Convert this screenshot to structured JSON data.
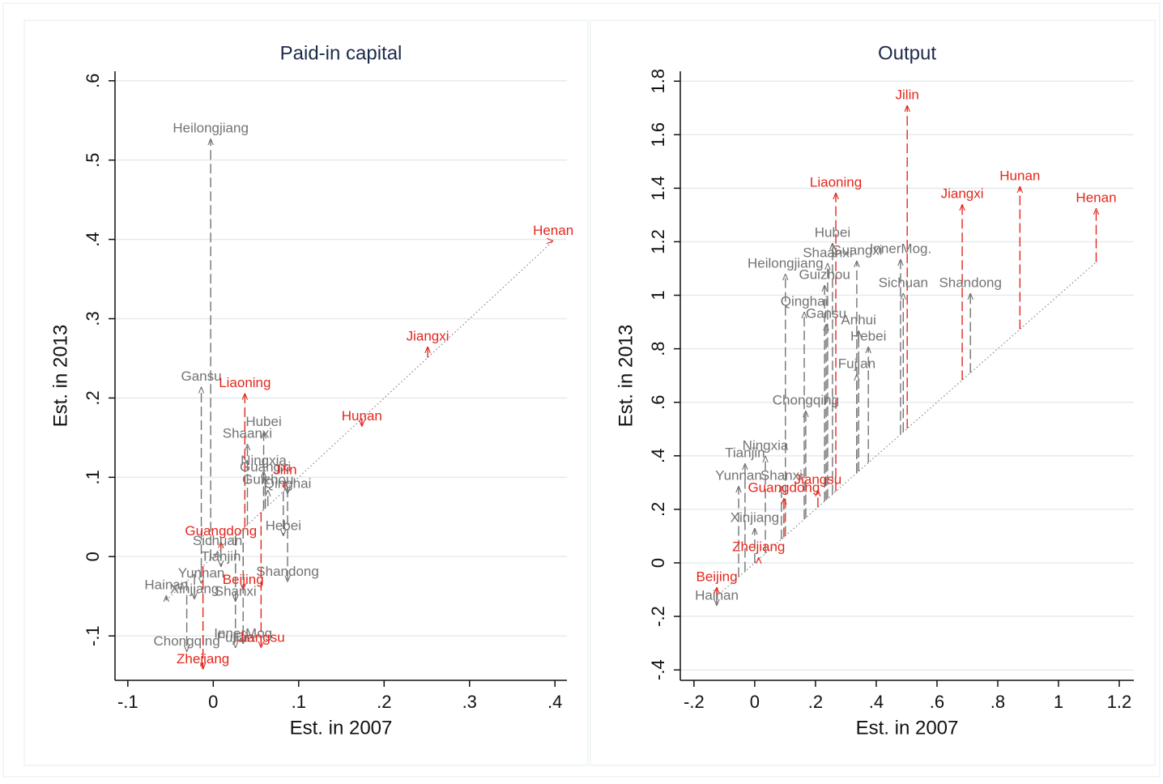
{
  "chart_data": [
    {
      "type": "arrow",
      "title": "Paid-in capital",
      "x_label": "Est. in 2007",
      "y_label": "Est. in 2013",
      "xlim": [
        -0.115,
        0.414
      ],
      "ylim": [
        -0.156,
        0.612
      ],
      "xticks": [
        {
          "value": -0.1,
          "label": "-.1"
        },
        0,
        {
          "value": 0.1,
          "label": ".1"
        },
        {
          "value": 0.2,
          "label": ".2"
        },
        {
          "value": 0.3,
          "label": ".3"
        },
        {
          "value": 0.4,
          "label": ".4"
        }
      ],
      "yticks": [
        {
          "value": -0.1,
          "label": "-.1"
        },
        0,
        {
          "value": 0.1,
          "label": ".1"
        },
        {
          "value": 0.2,
          "label": ".2"
        },
        {
          "value": 0.3,
          "label": ".3"
        },
        {
          "value": 0.4,
          "label": ".4"
        },
        {
          "value": 0.5,
          "label": ".5"
        },
        {
          "value": 0.6,
          "label": ".6"
        }
      ],
      "grid": true,
      "labels": [
        "Heilongjiang",
        "Henan",
        "Jiangxi",
        "Hunan",
        "Gansu",
        "Liaoning",
        "Hubei",
        "Shaanxi",
        "Ningxia",
        "Guangxi",
        "Jilin",
        "Guizhou",
        "Qinghai",
        "Hebei",
        "Guangdong",
        "Sichuan",
        "Tianjin",
        "Shandong",
        "Hainan",
        "Yunnan",
        "Xinjiang",
        "Shanxi",
        "Beijing",
        "InnerMog",
        "Fujian",
        "Jiangsu",
        "Chongqing",
        "Zhejiang"
      ],
      "x": [
        -0.003,
        0.398,
        0.251,
        0.174,
        -0.014,
        0.037,
        0.059,
        0.04,
        0.059,
        0.061,
        0.084,
        0.064,
        0.087,
        0.082,
        0.009,
        0.005,
        0.009,
        0.087,
        -0.055,
        -0.014,
        -0.022,
        0.026,
        0.035,
        0.035,
        0.026,
        0.056,
        -0.031,
        -0.012
      ],
      "values": [
        0.527,
        0.398,
        0.265,
        0.164,
        0.214,
        0.206,
        0.157,
        0.142,
        0.108,
        0.1,
        0.096,
        0.084,
        0.079,
        0.026,
        0.019,
        0.007,
        -0.013,
        -0.032,
        -0.049,
        -0.034,
        -0.054,
        -0.057,
        -0.042,
        -0.11,
        -0.115,
        -0.115,
        -0.12,
        -0.142
      ],
      "colors": [
        "#737373",
        "#e5261d",
        "#e5261d",
        "#e5261d",
        "#737373",
        "#e5261d",
        "#737373",
        "#737373",
        "#737373",
        "#737373",
        "#e5261d",
        "#737373",
        "#737373",
        "#737373",
        "#e5261d",
        "#737373",
        "#737373",
        "#737373",
        "#737373",
        "#737373",
        "#737373",
        "#737373",
        "#e5261d",
        "#737373",
        "#737373",
        "#e5261d",
        "#737373",
        "#e5261d"
      ]
    },
    {
      "type": "arrow",
      "title": "Output",
      "x_label": "Est. in 2007",
      "y_label": "Est. in 2013",
      "xlim": [
        -0.245,
        1.248
      ],
      "ylim": [
        -0.439,
        1.837
      ],
      "xticks": [
        {
          "value": -0.2,
          "label": "-.2"
        },
        0,
        {
          "value": 0.2,
          "label": ".2"
        },
        {
          "value": 0.4,
          "label": ".4"
        },
        {
          "value": 0.6,
          "label": ".6"
        },
        {
          "value": 0.8,
          "label": ".8"
        },
        1,
        1.2
      ],
      "yticks": [
        {
          "value": -0.4,
          "label": "-.4"
        },
        {
          "value": -0.2,
          "label": "-.2"
        },
        0,
        {
          "value": 0.2,
          "label": ".2"
        },
        {
          "value": 0.4,
          "label": ".4"
        },
        {
          "value": 0.6,
          "label": ".6"
        },
        {
          "value": 0.8,
          "label": ".8"
        },
        1,
        1.2,
        1.4,
        1.6,
        1.8
      ],
      "grid": true,
      "labels": [
        "Jilin",
        "Liaoning",
        "Jiangxi",
        "Hunan",
        "Henan",
        "Hubei",
        "Guangxi",
        "InnerMog.",
        "Shaanxi",
        "Heilongjiang",
        "Guizhou",
        "Sichuan",
        "Shandong",
        "Qinghai",
        "Gansu",
        "Anhui",
        "Hebei",
        "Fujian",
        "Chongqing",
        "Ningxia",
        "Tianjin",
        "Yunnan",
        "Shanxi",
        "Jiangsu",
        "Guangdong",
        "Xinjiang",
        "Zhejiang",
        "Beijing",
        "Hainan"
      ],
      "x": [
        0.502,
        0.267,
        0.683,
        0.873,
        1.124,
        0.256,
        0.336,
        0.48,
        0.24,
        0.101,
        0.23,
        0.489,
        0.71,
        0.163,
        0.235,
        0.342,
        0.374,
        0.336,
        0.168,
        0.035,
        -0.032,
        -0.053,
        0.088,
        0.208,
        0.096,
        0,
        0.013,
        -0.125,
        -0.125
      ],
      "values": [
        1.71,
        1.383,
        1.34,
        1.407,
        1.325,
        1.195,
        1.129,
        1.135,
        1.12,
        1.08,
        1.038,
        1.008,
        1.008,
        0.938,
        0.893,
        0.868,
        0.808,
        0.705,
        0.569,
        0.4,
        0.372,
        0.287,
        0.287,
        0.272,
        0.242,
        0.13,
        0.021,
        -0.091,
        -0.16
      ],
      "colors": [
        "#e5261d",
        "#e5261d",
        "#e5261d",
        "#e5261d",
        "#e5261d",
        "#737373",
        "#737373",
        "#737373",
        "#737373",
        "#737373",
        "#737373",
        "#737373",
        "#737373",
        "#737373",
        "#737373",
        "#737373",
        "#737373",
        "#737373",
        "#737373",
        "#737373",
        "#737373",
        "#737373",
        "#737373",
        "#e5261d",
        "#e5261d",
        "#737373",
        "#e5261d",
        "#e5261d",
        "#737373"
      ]
    }
  ]
}
